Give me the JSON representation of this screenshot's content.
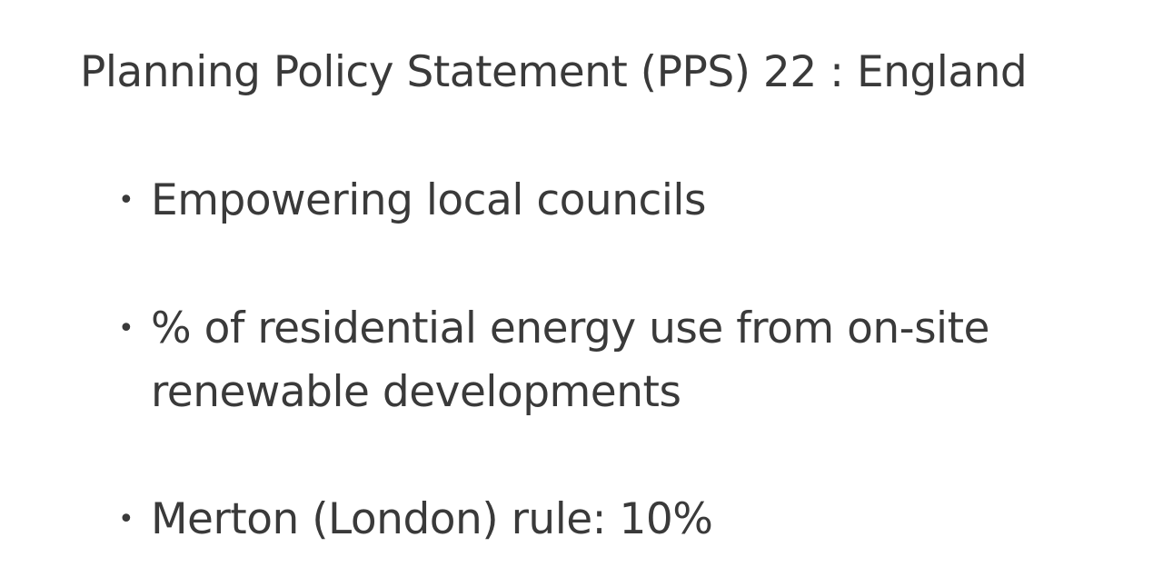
{
  "slide": {
    "title": "Planning Policy Statement (PPS) 22 : England",
    "bullet_symbol": "•",
    "bullets": [
      {
        "text": "Empowering local councils"
      },
      {
        "text": "% of residential energy use from on-site renewable developments"
      },
      {
        "text": "Merton (London) rule: 10%"
      }
    ]
  }
}
